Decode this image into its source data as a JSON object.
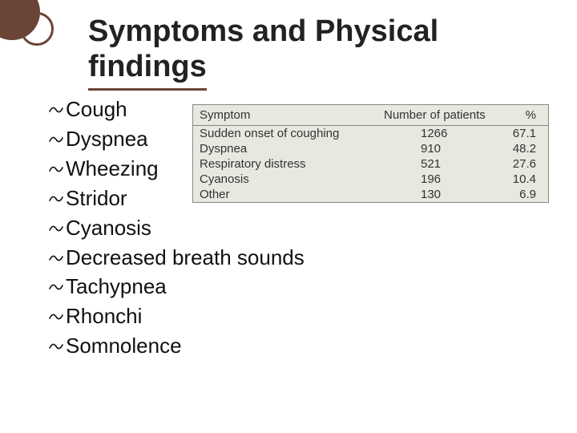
{
  "title_line1": "Symptoms and Physical",
  "title_line2": "findings",
  "symptoms": {
    "item0": "Cough",
    "item1": "Dyspnea",
    "item2": "Wheezing",
    "item3": "Stridor",
    "item4": "Cyanosis",
    "item5": "Decreased breath sounds",
    "item6": "Tachypnea",
    "item7": "Rhonchi",
    "item8": "Somnolence"
  },
  "table": {
    "header": {
      "col0": "Symptom",
      "col1": "Number of patients",
      "col2": "%"
    },
    "rows": {
      "r0": {
        "symptom": "Sudden onset of coughing",
        "n": "1266",
        "pct": "67.1"
      },
      "r1": {
        "symptom": "Dyspnea",
        "n": "910",
        "pct": "48.2"
      },
      "r2": {
        "symptom": "Respiratory distress",
        "n": "521",
        "pct": "27.6"
      },
      "r3": {
        "symptom": "Cyanosis",
        "n": "196",
        "pct": "10.4"
      },
      "r4": {
        "symptom": "Other",
        "n": "130",
        "pct": "6.9"
      }
    }
  },
  "colors": {
    "accent": "#6b4438",
    "background": "#ffffff",
    "table_bg": "#e8e8e0",
    "table_border": "#888888",
    "text": "#111111"
  }
}
